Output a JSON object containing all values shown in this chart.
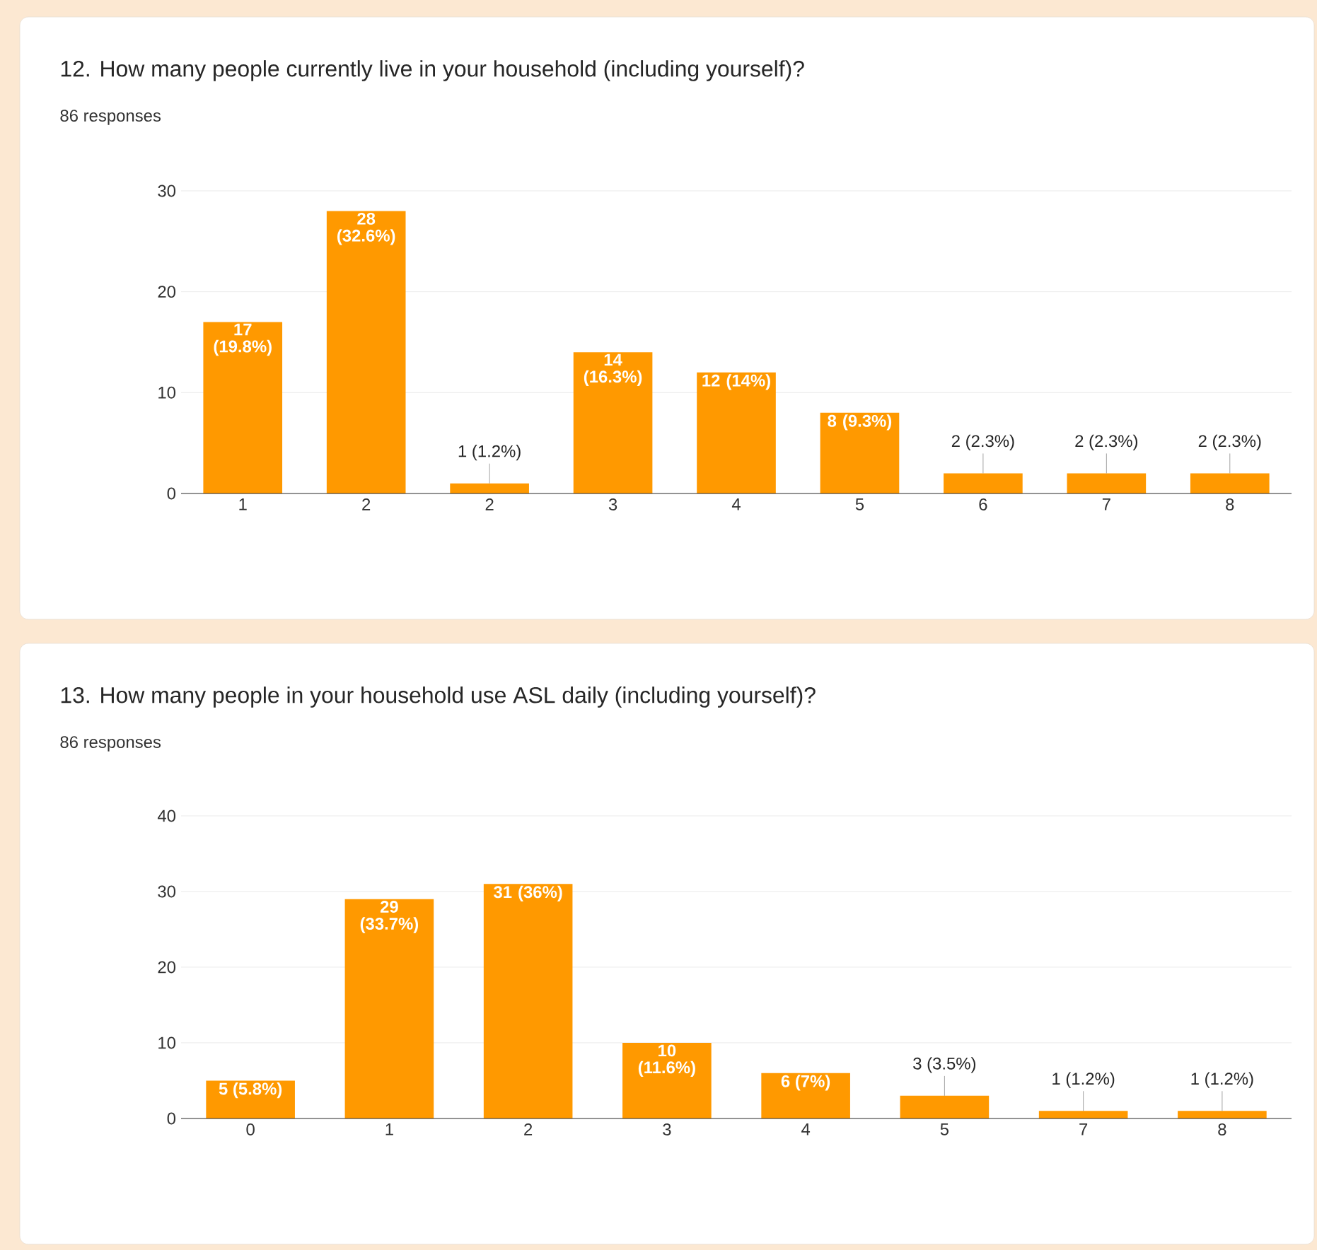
{
  "chart_data": [
    {
      "type": "bar",
      "title": "12. How many people currently live in your household (including yourself)?",
      "subtitle": "86 responses",
      "categories": [
        "1",
        "2",
        "2",
        "3",
        "4",
        "5",
        "6",
        "7",
        "8"
      ],
      "values": [
        17,
        28,
        1,
        14,
        12,
        8,
        2,
        2,
        2
      ],
      "value_labels": [
        "17 (19.8%)",
        "28 (32.6%)",
        "1 (1.2%)",
        "14 (16.3%)",
        "12 (14%)",
        "8 (9.3%)",
        "2 (2.3%)",
        "2 (2.3%)",
        "2 (2.3%)"
      ],
      "color": "#ff9900",
      "ylim": [
        0,
        30
      ],
      "yticks": [
        0,
        10,
        20,
        30
      ],
      "grid": "y"
    },
    {
      "type": "bar",
      "title": "13. How many people in your household use ASL daily (including yourself)?",
      "subtitle": "86 responses",
      "categories": [
        "0",
        "1",
        "2",
        "3",
        "4",
        "5",
        "7",
        "8"
      ],
      "values": [
        5,
        29,
        31,
        10,
        6,
        3,
        1,
        1
      ],
      "value_labels": [
        "5 (5.8%)",
        "29 (33.7%)",
        "31 (36%)",
        "10 (11.6%)",
        "6 (7%)",
        "3 (3.5%)",
        "1 (1.2%)",
        "1 (1.2%)"
      ],
      "color": "#ff9900",
      "ylim": [
        0,
        40
      ],
      "yticks": [
        0,
        10,
        20,
        30,
        40
      ],
      "grid": "y"
    }
  ]
}
